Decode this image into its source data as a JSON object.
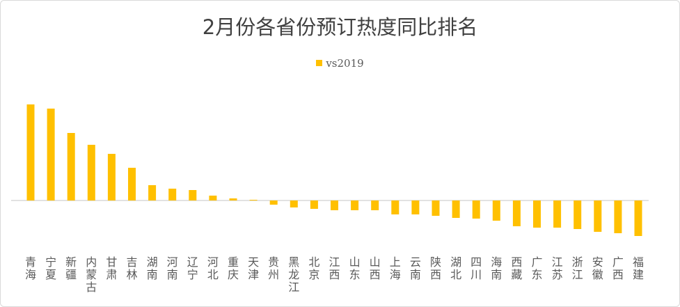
{
  "chart_data": {
    "type": "bar",
    "title": "2月份各省份预订热度同比排名",
    "xlabel": "",
    "ylabel": "",
    "legend": {
      "position": "top",
      "entries": [
        "vs2019"
      ]
    },
    "grid": false,
    "note": "No y-axis scale shown; values are relative estimates",
    "ylim": [
      -55,
      145
    ],
    "categories": [
      "青海",
      "宁夏",
      "新疆",
      "内蒙古",
      "甘肃",
      "吉林",
      "湖南",
      "河南",
      "辽宁",
      "河北",
      "重庆",
      "天津",
      "贵州",
      "黑龙江",
      "北京",
      "江西",
      "山东",
      "山西",
      "上海",
      "云南",
      "陕西",
      "湖北",
      "四川",
      "海南",
      "西藏",
      "广东",
      "江苏",
      "浙江",
      "安徽",
      "广西",
      "福建"
    ],
    "series": [
      {
        "name": "vs2019",
        "color": "#FFC000",
        "values": [
          138,
          132,
          97,
          80,
          67,
          47,
          22,
          17,
          15,
          7,
          3,
          1,
          -6,
          -10,
          -12,
          -14,
          -14,
          -14,
          -20,
          -20,
          -22,
          -25,
          -26,
          -29,
          -37,
          -39,
          -39,
          -41,
          -45,
          -47,
          -51
        ]
      }
    ]
  }
}
